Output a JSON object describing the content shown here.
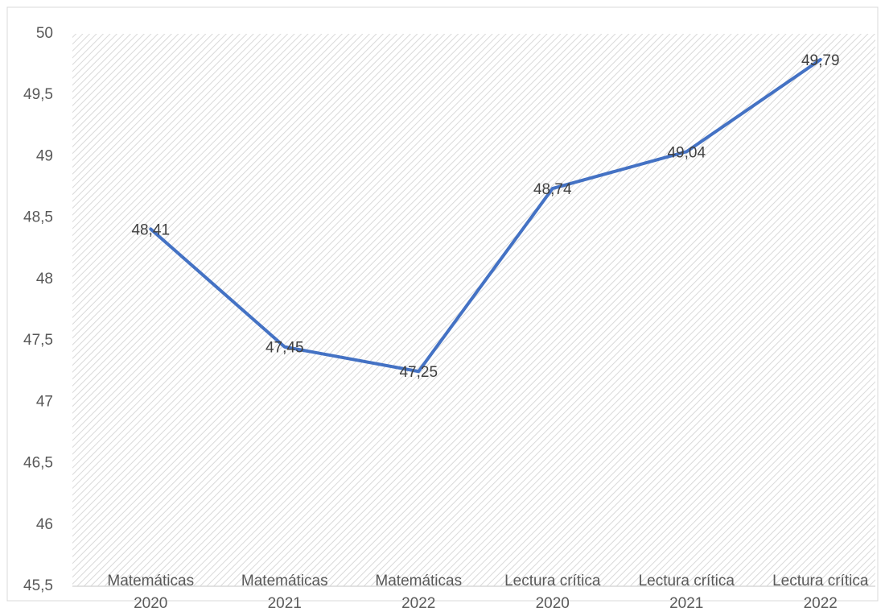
{
  "chart_data": {
    "type": "line",
    "categories": [
      "Matemáticas 2020",
      "Matemáticas 2021",
      "Matemáticas 2022",
      "Lectura crítica 2020",
      "Lectura crítica 2021",
      "Lectura crítica 2022"
    ],
    "values": [
      48.41,
      47.45,
      47.25,
      48.74,
      49.04,
      49.79
    ],
    "value_labels": [
      "48,41",
      "47,45",
      "47,25",
      "48,74",
      "49,04",
      "49,79"
    ],
    "color": "#4472c4",
    "ylim": [
      45.5,
      50
    ],
    "yticks": [
      {
        "value": 45.5,
        "label": "45,5"
      },
      46,
      {
        "value": 46.5,
        "label": "46,5"
      },
      47,
      {
        "value": 47.5,
        "label": "47,5"
      },
      48,
      {
        "value": 48.5,
        "label": "48,5"
      },
      49,
      {
        "value": 49.5,
        "label": "49,5"
      },
      50
    ]
  }
}
